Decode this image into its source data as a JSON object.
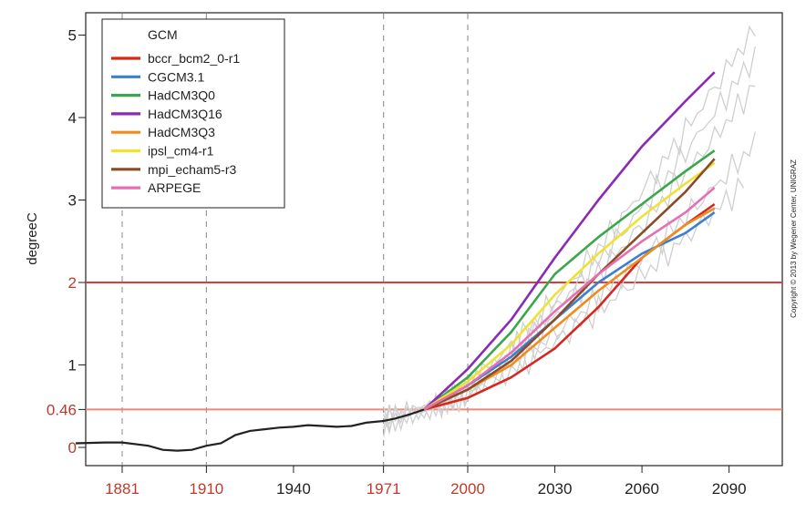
{
  "chart_data": {
    "type": "line",
    "title": "",
    "xlabel": "",
    "ylabel": "degreeC",
    "xlim": [
      1865,
      2110
    ],
    "ylim": [
      -0.25,
      5.15
    ],
    "x_ticks": [
      {
        "value": 1881,
        "label": "1881",
        "highlight": true
      },
      {
        "value": 1910,
        "label": "1910",
        "highlight": true
      },
      {
        "value": 1940,
        "label": "1940",
        "highlight": false
      },
      {
        "value": 1971,
        "label": "1971",
        "highlight": true
      },
      {
        "value": 2000,
        "label": "2000",
        "highlight": true
      },
      {
        "value": 2030,
        "label": "2030",
        "highlight": false
      },
      {
        "value": 2060,
        "label": "2060",
        "highlight": false
      },
      {
        "value": 2090,
        "label": "2090",
        "highlight": false
      }
    ],
    "y_ticks": [
      {
        "value": 0,
        "label": "0",
        "highlight": true
      },
      {
        "value": 0.46,
        "label": "0.46",
        "highlight": true
      },
      {
        "value": 1,
        "label": "1",
        "highlight": false
      },
      {
        "value": 2,
        "label": "2",
        "highlight": true
      },
      {
        "value": 3,
        "label": "3",
        "highlight": false
      },
      {
        "value": 4,
        "label": "4",
        "highlight": false
      },
      {
        "value": 5,
        "label": "5",
        "highlight": false
      }
    ],
    "vlines": [
      1881,
      1910,
      1971,
      2000
    ],
    "hlines": [
      {
        "value": 2,
        "color": "#e03a3a"
      },
      {
        "value": 0.46,
        "color": "#e88a7a"
      }
    ],
    "legend": {
      "title": "GCM",
      "placement": "top-left"
    },
    "observed": {
      "x": [
        1865,
        1875,
        1881,
        1890,
        1895,
        1900,
        1905,
        1910,
        1915,
        1920,
        1925,
        1930,
        1935,
        1940,
        1945,
        1950,
        1955,
        1960,
        1965,
        1971,
        1975,
        1980,
        1985
      ],
      "y": [
        0.05,
        0.06,
        0.06,
        0.02,
        -0.03,
        -0.04,
        -0.03,
        0.02,
        0.05,
        0.15,
        0.2,
        0.22,
        0.24,
        0.25,
        0.27,
        0.26,
        0.25,
        0.26,
        0.3,
        0.32,
        0.35,
        0.4,
        0.46
      ]
    },
    "series": [
      {
        "name": "bccr_bcm2_0-r1",
        "color": "#d7281d",
        "x": [
          1985,
          2000,
          2015,
          2030,
          2045,
          2060,
          2075,
          2085
        ],
        "y": [
          0.46,
          0.6,
          0.85,
          1.2,
          1.7,
          2.3,
          2.7,
          2.95
        ]
      },
      {
        "name": "CGCM3.1",
        "color": "#3b7fd0",
        "x": [
          1985,
          2000,
          2015,
          2030,
          2045,
          2060,
          2075,
          2085
        ],
        "y": [
          0.46,
          0.75,
          1.1,
          1.55,
          2.0,
          2.35,
          2.6,
          2.85
        ]
      },
      {
        "name": "HadCM3Q0",
        "color": "#3aa84a",
        "x": [
          1985,
          2000,
          2015,
          2030,
          2045,
          2060,
          2075,
          2085
        ],
        "y": [
          0.46,
          0.85,
          1.4,
          2.1,
          2.55,
          2.95,
          3.35,
          3.6
        ]
      },
      {
        "name": "HadCM3Q16",
        "color": "#8a2ab5",
        "x": [
          1985,
          2000,
          2015,
          2030,
          2045,
          2060,
          2075,
          2085
        ],
        "y": [
          0.46,
          0.95,
          1.55,
          2.3,
          3.0,
          3.65,
          4.2,
          4.55
        ]
      },
      {
        "name": "HadCM3Q3",
        "color": "#ee8c1e",
        "x": [
          1985,
          2000,
          2015,
          2030,
          2045,
          2060,
          2075,
          2085
        ],
        "y": [
          0.46,
          0.7,
          1.0,
          1.45,
          1.9,
          2.3,
          2.7,
          2.9
        ]
      },
      {
        "name": "ipsl_cm4-r1",
        "color": "#f0e233",
        "x": [
          1985,
          2000,
          2015,
          2030,
          2045,
          2060,
          2075,
          2085
        ],
        "y": [
          0.46,
          0.8,
          1.25,
          1.85,
          2.35,
          2.8,
          3.2,
          3.45
        ]
      },
      {
        "name": "mpi_echam5-r3",
        "color": "#8b4b26",
        "x": [
          1985,
          2000,
          2015,
          2030,
          2045,
          2060,
          2075,
          2085
        ],
        "y": [
          0.46,
          0.7,
          1.05,
          1.55,
          2.1,
          2.6,
          3.1,
          3.5
        ]
      },
      {
        "name": "ARPEGE",
        "color": "#e66fb2",
        "x": [
          1985,
          2000,
          2015,
          2030,
          2045,
          2060,
          2075,
          2085
        ],
        "y": [
          0.46,
          0.75,
          1.15,
          1.65,
          2.1,
          2.5,
          2.85,
          3.15
        ]
      }
    ],
    "annotations": [
      "Copyright © 2013 by Wegener Center, UNIGRAZ"
    ]
  },
  "colors": {
    "highlight_label": "#c0392b",
    "normal_label": "#222222",
    "dashed_line": "#999999",
    "observed": "#222222",
    "ensemble_gray": "#cfcfcf"
  }
}
